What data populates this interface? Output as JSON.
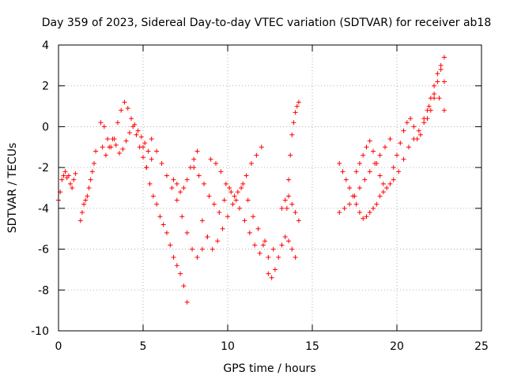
{
  "chart_data": {
    "type": "scatter",
    "title": "Day 359 of 2023, Sidereal Day-to-day VTEC variation (SDTVAR) for receiver ab18",
    "xlabel": "GPS time / hours",
    "ylabel": "SDTVAR / TECUs",
    "xlim": [
      0,
      25
    ],
    "ylim": [
      -10,
      4
    ],
    "xticks": [
      "0",
      "5",
      "10",
      "15",
      "20",
      "25"
    ],
    "yticks": [
      "-10",
      "-8",
      "-6",
      "-4",
      "-2",
      "0",
      "2",
      "4"
    ],
    "grid": true,
    "marker": "+",
    "color": "#ff0000",
    "series": [
      {
        "x": [
          0.0,
          0.1,
          0.2,
          0.3,
          0.4,
          0.5,
          0.6,
          0.7,
          0.8,
          0.9,
          1.0
        ],
        "y": [
          -3.6,
          -3.2,
          -2.6,
          -2.4,
          -2.2,
          -2.5,
          -2.4,
          -2.8,
          -3.0,
          -2.6,
          -2.3
        ]
      },
      {
        "x": [
          1.3,
          1.4,
          1.5,
          1.6,
          1.7,
          1.8,
          1.9,
          2.0,
          2.1,
          2.2
        ],
        "y": [
          -4.6,
          -4.2,
          -3.8,
          -3.6,
          -3.4,
          -3.0,
          -2.6,
          -2.2,
          -1.8,
          -1.2
        ]
      },
      {
        "x": [
          2.5,
          2.7,
          2.9,
          3.1,
          3.3,
          3.5,
          3.7,
          3.9,
          4.1,
          4.3,
          4.5,
          4.7,
          4.9,
          5.1,
          5.3,
          5.5
        ],
        "y": [
          0.2,
          0.0,
          -0.6,
          -1.0,
          -0.6,
          0.2,
          0.8,
          1.2,
          0.9,
          0.4,
          0.1,
          -0.2,
          -0.5,
          -0.8,
          -1.2,
          -1.6
        ]
      },
      {
        "x": [
          2.6,
          2.8,
          3.0,
          3.2,
          3.4,
          3.6,
          3.8,
          4.0,
          4.2,
          4.4,
          4.6,
          4.8,
          5.0,
          5.2
        ],
        "y": [
          -1.0,
          -1.4,
          -1.0,
          -0.6,
          -0.9,
          -1.3,
          -1.1,
          -0.7,
          -0.3,
          0.0,
          -0.4,
          -1.0,
          -1.5,
          -2.0
        ]
      },
      {
        "x": [
          5.0,
          5.2,
          5.4,
          5.6,
          5.8,
          6.0,
          6.2,
          6.4,
          6.6,
          6.8,
          7.0,
          7.2,
          7.4,
          7.6
        ],
        "y": [
          -1.0,
          -2.0,
          -2.8,
          -3.4,
          -3.8,
          -4.4,
          -4.8,
          -5.2,
          -5.8,
          -6.4,
          -6.8,
          -7.2,
          -7.8,
          -8.6
        ]
      },
      {
        "x": [
          5.5,
          5.8,
          6.1,
          6.4,
          6.7,
          7.0,
          7.3,
          7.6,
          7.9,
          8.2,
          8.5,
          8.8
        ],
        "y": [
          -0.6,
          -1.2,
          -1.8,
          -2.4,
          -3.0,
          -3.6,
          -4.4,
          -5.2,
          -6.0,
          -6.4,
          -6.0,
          -5.4
        ]
      },
      {
        "x": [
          6.8,
          7.0,
          7.2,
          7.4,
          7.6,
          7.8,
          8.0,
          8.2
        ],
        "y": [
          -2.6,
          -2.8,
          -3.2,
          -3.0,
          -2.6,
          -2.0,
          -1.6,
          -1.2
        ]
      },
      {
        "x": [
          8.0,
          8.3,
          8.6,
          8.9,
          9.2,
          9.5,
          9.8,
          10.1,
          10.4,
          10.7,
          11.0,
          11.3,
          11.6,
          11.9,
          12.2
        ],
        "y": [
          -2.0,
          -2.4,
          -2.8,
          -3.4,
          -3.8,
          -4.2,
          -3.6,
          -3.0,
          -3.4,
          -4.0,
          -4.6,
          -5.2,
          -5.8,
          -6.2,
          -5.6
        ]
      },
      {
        "x": [
          8.5,
          8.8,
          9.1,
          9.4,
          9.7,
          10.0,
          10.3,
          10.6,
          10.9,
          11.2,
          11.5,
          11.8,
          12.1,
          12.4,
          12.7
        ],
        "y": [
          -4.6,
          -5.4,
          -6.0,
          -5.6,
          -5.0,
          -4.4,
          -3.8,
          -3.2,
          -2.8,
          -3.6,
          -4.4,
          -5.0,
          -5.8,
          -6.4,
          -6.0
        ]
      },
      {
        "x": [
          9.0,
          9.3,
          9.6,
          9.9,
          10.2,
          10.5,
          10.8,
          11.1,
          11.4,
          11.7,
          12.0
        ],
        "y": [
          -1.6,
          -1.8,
          -2.2,
          -2.8,
          -3.2,
          -3.6,
          -3.0,
          -2.4,
          -1.8,
          -1.4,
          -1.0
        ]
      },
      {
        "x": [
          12.4,
          12.6,
          12.8,
          13.0,
          13.2,
          13.4,
          13.6,
          13.8,
          14.0
        ],
        "y": [
          -7.2,
          -7.4,
          -7.0,
          -6.4,
          -5.8,
          -5.4,
          -5.6,
          -6.0,
          -6.4
        ]
      },
      {
        "x": [
          13.2,
          13.4,
          13.6,
          13.8,
          14.0,
          14.2
        ],
        "y": [
          -4.0,
          -3.6,
          -3.4,
          -3.8,
          -4.2,
          -4.6
        ]
      },
      {
        "x": [
          13.5,
          13.6,
          13.7,
          13.8,
          13.9,
          14.0,
          14.1,
          14.2
        ],
        "y": [
          -4.0,
          -2.6,
          -1.4,
          -0.4,
          0.2,
          0.7,
          1.0,
          1.2
        ]
      },
      {
        "x": [
          16.6,
          16.8,
          17.0,
          17.2,
          17.4,
          17.6,
          17.8,
          18.0,
          18.2,
          18.4,
          18.6,
          18.8,
          19.0,
          19.2,
          19.4,
          19.6,
          19.8
        ],
        "y": [
          -1.8,
          -2.2,
          -2.6,
          -3.0,
          -3.4,
          -3.8,
          -4.2,
          -4.5,
          -4.4,
          -4.2,
          -4.0,
          -3.8,
          -3.4,
          -3.2,
          -3.0,
          -2.8,
          -2.6
        ]
      },
      {
        "x": [
          16.6,
          16.9,
          17.2,
          17.5,
          17.8,
          18.1,
          18.4,
          18.7,
          19.0,
          19.3,
          19.6
        ],
        "y": [
          -4.2,
          -4.0,
          -3.8,
          -3.4,
          -3.0,
          -2.6,
          -2.2,
          -1.8,
          -1.4,
          -1.0,
          -0.6
        ]
      },
      {
        "x": [
          17.6,
          17.8,
          18.0,
          18.2,
          18.4,
          18.6,
          18.8,
          19.0,
          19.2
        ],
        "y": [
          -2.2,
          -1.8,
          -1.4,
          -1.0,
          -0.7,
          -1.2,
          -1.8,
          -2.4,
          -2.8
        ]
      },
      {
        "x": [
          19.8,
          20.0,
          20.2,
          20.4,
          20.6,
          20.8,
          21.0,
          21.2,
          21.4,
          21.6,
          21.8,
          22.0,
          22.2,
          22.4,
          22.6,
          22.8
        ],
        "y": [
          -2.0,
          -1.4,
          -0.8,
          -0.2,
          0.2,
          0.4,
          0.0,
          -0.6,
          -0.4,
          0.2,
          0.8,
          1.4,
          2.0,
          2.6,
          3.0,
          3.4
        ]
      },
      {
        "x": [
          20.1,
          20.4,
          20.7,
          21.0,
          21.3,
          21.6,
          21.9,
          22.2,
          22.5,
          22.8
        ],
        "y": [
          -2.2,
          -1.6,
          -1.0,
          -0.6,
          -0.2,
          0.4,
          1.0,
          1.6,
          1.4,
          0.8
        ]
      },
      {
        "x": [
          21.8,
          22.0,
          22.2,
          22.4,
          22.6,
          22.8
        ],
        "y": [
          0.4,
          0.8,
          1.4,
          2.2,
          2.8,
          2.2
        ]
      }
    ]
  }
}
